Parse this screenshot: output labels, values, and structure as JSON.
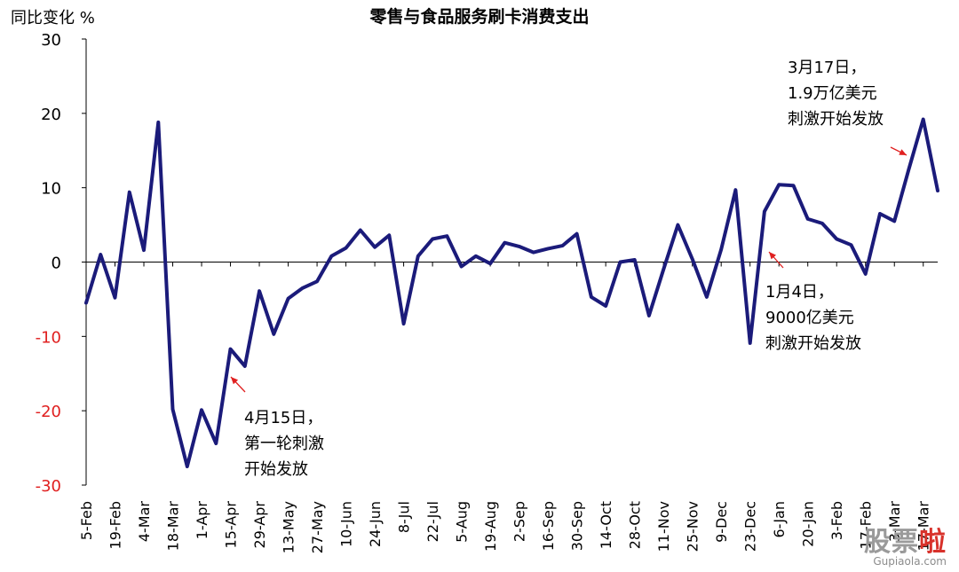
{
  "title": "零售与食品服务刷卡消费支出",
  "ylabel": "同比变化 %",
  "watermark": {
    "text_gray": "股票",
    "text_red": "啦",
    "url": "Gupiaola.com"
  },
  "annotations": [
    {
      "id": "apr15",
      "lines": [
        "4月15日，",
        "第一轮刺激",
        "开始发放"
      ]
    },
    {
      "id": "jan4",
      "lines": [
        "1月4日，",
        "9000亿美元",
        "刺激开始发放"
      ]
    },
    {
      "id": "mar17",
      "lines": [
        "3月17日，",
        "1.9万亿美元",
        "刺激开始发放"
      ]
    }
  ],
  "colors": {
    "line": "#1b1b7a",
    "axis": "#000000",
    "negative_tick": "#e02020",
    "arrow": "#e02020"
  },
  "chart_data": {
    "type": "line",
    "title": "零售与食品服务刷卡消费支出",
    "ylabel": "同比变化 %",
    "xlabel": "",
    "ylim": [
      -30,
      30
    ],
    "yticks": [
      30,
      20,
      10,
      0,
      -10,
      -20,
      -30
    ],
    "grid": false,
    "x_tick_labels": [
      "5-Feb",
      "19-Feb",
      "4-Mar",
      "18-Mar",
      "1-Apr",
      "15-Apr",
      "29-Apr",
      "13-May",
      "27-May",
      "10-Jun",
      "24-Jun",
      "8-Jul",
      "22-Jul",
      "5-Aug",
      "19-Aug",
      "2-Sep",
      "16-Sep",
      "30-Sep",
      "14-Oct",
      "28-Oct",
      "11-Nov",
      "25-Nov",
      "9-Dec",
      "23-Dec",
      "6-Jan",
      "20-Jan",
      "3-Feb",
      "17-Feb",
      "3-Mar",
      "17-Mar"
    ],
    "series": [
      {
        "values": [
          -5.5,
          1.0,
          -4.8,
          9.4,
          1.6,
          18.8,
          -19.8,
          -27.5,
          -19.9,
          -24.4,
          -11.7,
          -14.0,
          -3.9,
          -9.7,
          -4.9,
          -3.5,
          -2.6,
          0.8,
          1.9,
          4.3,
          2.0,
          3.6,
          -8.3,
          0.8,
          3.1,
          3.5,
          -0.6,
          0.8,
          -0.2,
          2.6,
          2.1,
          1.3,
          1.8,
          2.2,
          3.8,
          -4.7,
          -5.9,
          0.0,
          0.3,
          -7.2,
          -1.0,
          5.0,
          0.4,
          -4.7,
          1.7,
          9.7,
          -10.9,
          6.8,
          10.4,
          10.3,
          5.8,
          5.2,
          3.1,
          2.3,
          -1.6,
          6.5,
          5.5,
          12.5,
          19.2,
          9.6
        ]
      }
    ]
  }
}
